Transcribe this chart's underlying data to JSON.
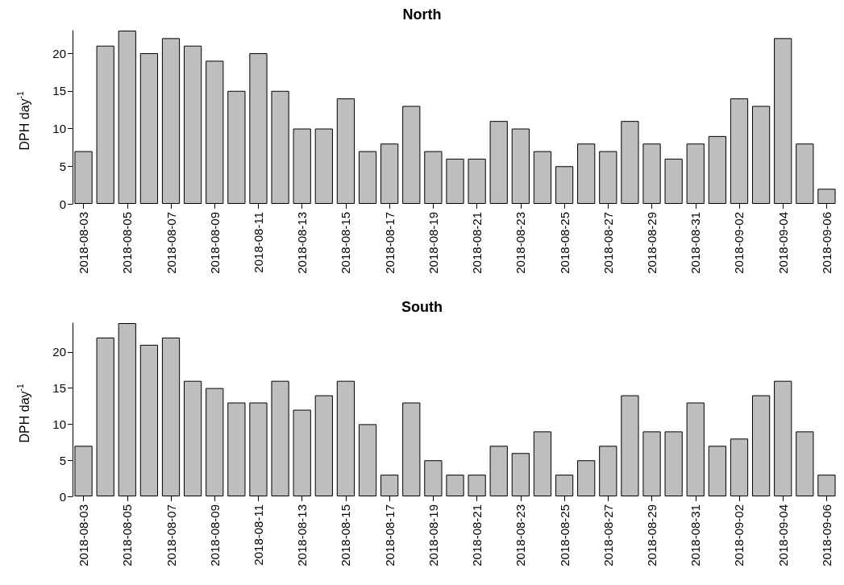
{
  "chart_data": [
    {
      "type": "bar",
      "title": "North",
      "ylabel": "DPH day$^{-1}$",
      "color": "#bebebe",
      "ylim": [
        0,
        23
      ],
      "yticks": [
        0,
        5,
        10,
        15,
        20
      ],
      "categories": [
        "2018-08-03",
        null,
        "2018-08-05",
        null,
        "2018-08-07",
        null,
        "2018-08-09",
        null,
        "2018-08-11",
        null,
        "2018-08-13",
        null,
        "2018-08-15",
        null,
        "2018-08-17",
        null,
        "2018-08-19",
        null,
        "2018-08-21",
        null,
        "2018-08-23",
        null,
        "2018-08-25",
        null,
        "2018-08-27",
        null,
        "2018-08-29",
        null,
        "2018-08-31",
        null,
        "2018-09-02",
        null,
        "2018-09-04",
        null,
        "2018-09-06"
      ],
      "values": [
        7,
        21,
        23,
        20,
        22,
        21,
        19,
        15,
        20,
        15,
        10,
        10,
        14,
        7,
        8,
        13,
        7,
        6,
        6,
        11,
        10,
        7,
        5,
        8,
        7,
        11,
        8,
        6,
        8,
        9,
        14,
        13,
        22,
        8,
        2
      ]
    },
    {
      "type": "bar",
      "title": "South",
      "ylabel": "DPH day$^{-1}$",
      "color": "#bebebe",
      "ylim": [
        0,
        24
      ],
      "yticks": [
        0,
        5,
        10,
        15,
        20
      ],
      "categories": [
        "2018-08-03",
        null,
        "2018-08-05",
        null,
        "2018-08-07",
        null,
        "2018-08-09",
        null,
        "2018-08-11",
        null,
        "2018-08-13",
        null,
        "2018-08-15",
        null,
        "2018-08-17",
        null,
        "2018-08-19",
        null,
        "2018-08-21",
        null,
        "2018-08-23",
        null,
        "2018-08-25",
        null,
        "2018-08-27",
        null,
        "2018-08-29",
        null,
        "2018-08-31",
        null,
        "2018-09-02",
        null,
        "2018-09-04",
        null,
        "2018-09-06"
      ],
      "values": [
        7,
        22,
        24,
        21,
        22,
        16,
        15,
        13,
        13,
        16,
        12,
        14,
        16,
        10,
        3,
        13,
        5,
        3,
        3,
        7,
        6,
        9,
        3,
        5,
        7,
        14,
        9,
        9,
        13,
        7,
        8,
        14,
        16,
        9,
        3
      ]
    }
  ]
}
